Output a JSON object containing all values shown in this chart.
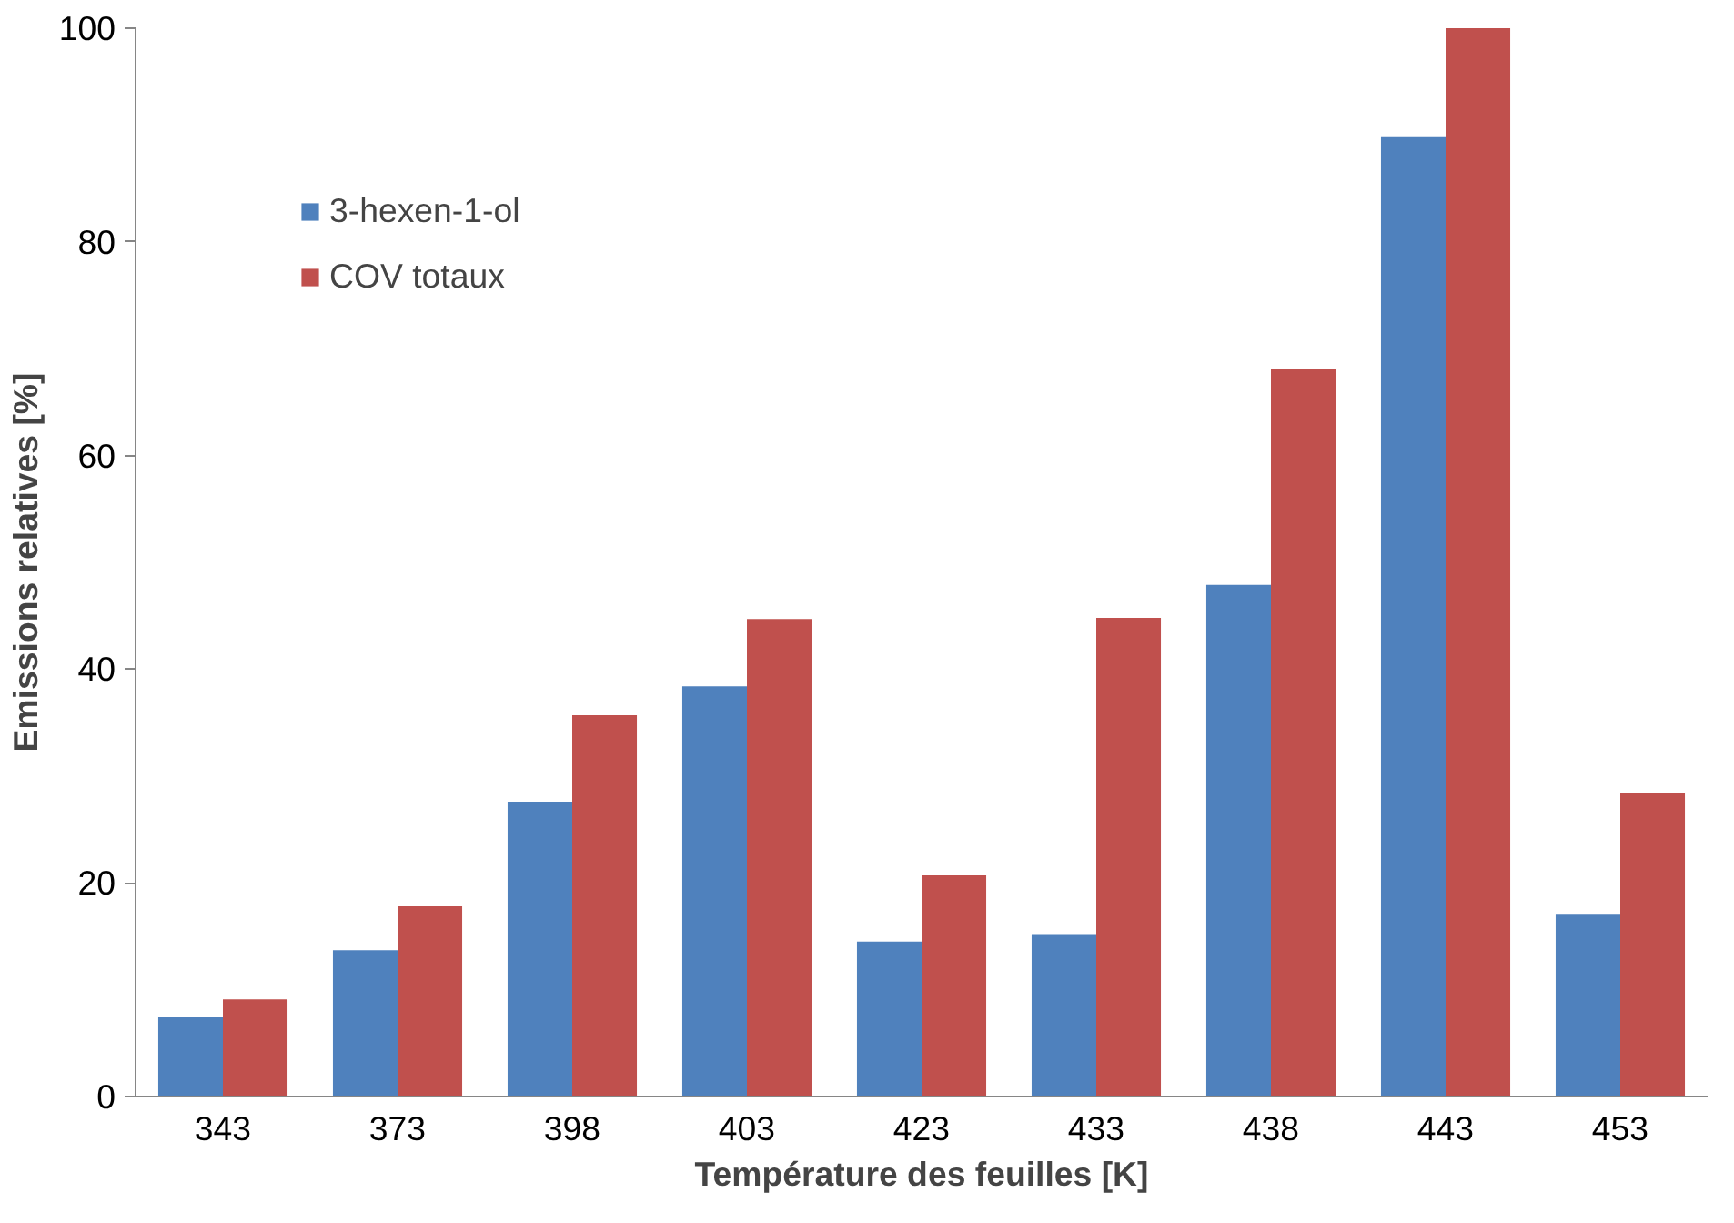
{
  "chart_data": {
    "type": "bar",
    "xlabel": "Température des feuilles [K]",
    "ylabel": "Emissions relatives [%]",
    "categories": [
      "343",
      "373",
      "398",
      "403",
      "423",
      "433",
      "438",
      "443",
      "453"
    ],
    "series": [
      {
        "name": "3-hexen-1-ol",
        "color": "#4f81bd",
        "values": [
          7.4,
          13.7,
          27.6,
          38.4,
          14.5,
          15.2,
          47.9,
          89.8,
          17.1
        ]
      },
      {
        "name": "COV totaux",
        "color": "#c0504d",
        "values": [
          9.1,
          17.8,
          35.7,
          44.7,
          20.7,
          44.8,
          68.1,
          100,
          28.4
        ]
      }
    ],
    "ylim": [
      0,
      100
    ],
    "yticks": [
      0,
      20,
      40,
      60,
      80,
      100
    ],
    "grid": false,
    "legend": "top left"
  }
}
